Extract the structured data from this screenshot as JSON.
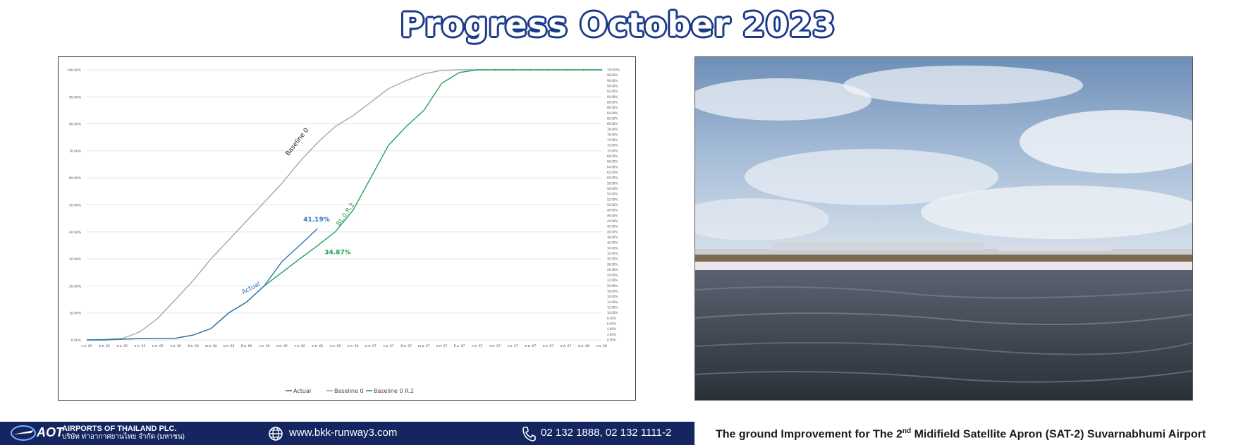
{
  "page": {
    "title": "Progress October 2023"
  },
  "chart_data": {
    "type": "line",
    "categories": [
      "ก.ย. 65",
      "ต.ค. 65",
      "พ.ย. 65",
      "ธ.ค. 65",
      "ม.ค. 66",
      "ก.พ. 66",
      "มี.ค. 66",
      "เม.ย. 66",
      "พ.ค. 66",
      "มิ.ย. 66",
      "ก.ค. 66",
      "ส.ค. 66",
      "ก.ย. 66",
      "ต.ค. 66",
      "พ.ย. 66",
      "ธ.ค. 66",
      "ม.ค. 67",
      "ก.พ. 67",
      "มี.ค. 67",
      "เม.ย. 67",
      "พ.ค. 67",
      "มิ.ย. 67",
      "ก.ค. 67",
      "ส.ค. 67",
      "ก.ย. 67",
      "ต.ค. 67",
      "พ.ย. 67",
      "ธ.ค. 67",
      "ม.ค. 68",
      "ก.พ. 68"
    ],
    "series": [
      {
        "name": "Actual",
        "color": "#2e75b6",
        "values": [
          0,
          0,
          0.3,
          0.5,
          0.6,
          0.6,
          1.8,
          4.2,
          10,
          14,
          20,
          29,
          35,
          41.19,
          null,
          null,
          null,
          null,
          null,
          null,
          null,
          null,
          null,
          null,
          null,
          null,
          null,
          null,
          null,
          null
        ]
      },
      {
        "name": "Baseline 0",
        "color": "#a6a6a6",
        "values": [
          0,
          0.2,
          0.5,
          3,
          8,
          15,
          22,
          30,
          37,
          44,
          51,
          58,
          66,
          73,
          79,
          83,
          88,
          93,
          96,
          98.5,
          99.8,
          100,
          100,
          100,
          100,
          100,
          100,
          100,
          100,
          100
        ]
      },
      {
        "name": "Baseline 0 R.2",
        "color": "#21a35a",
        "values": [
          0,
          0,
          0.3,
          0.5,
          0.6,
          0.6,
          1.8,
          4.2,
          10,
          14,
          20,
          25,
          30,
          34.87,
          40,
          48,
          60,
          72,
          79,
          85,
          95,
          99,
          100,
          100,
          100,
          100,
          100,
          100,
          100,
          100
        ]
      }
    ],
    "ylim": [
      0,
      100
    ],
    "y_ticks_left": [
      "0.00%",
      "10.00%",
      "20.00%",
      "30.00%",
      "40.00%",
      "50.00%",
      "60.00%",
      "70.00%",
      "80.00%",
      "90.00%",
      "100.00%"
    ],
    "y_ticks_right": [
      "0.00%",
      "2.00%",
      "4.00%",
      "6.00%",
      "8.00%",
      "10.00%",
      "12.00%",
      "14.00%",
      "16.00%",
      "18.00%",
      "20.00%",
      "22.00%",
      "24.00%",
      "26.00%",
      "28.00%",
      "30.00%",
      "32.00%",
      "34.00%",
      "36.00%",
      "38.00%",
      "40.00%",
      "42.00%",
      "44.00%",
      "46.00%",
      "48.00%",
      "50.00%",
      "52.00%",
      "54.00%",
      "56.00%",
      "58.00%",
      "60.00%",
      "62.00%",
      "64.00%",
      "66.00%",
      "68.00%",
      "70.00%",
      "72.00%",
      "74.00%",
      "76.00%",
      "78.00%",
      "80.00%",
      "82.00%",
      "84.00%",
      "86.00%",
      "88.00%",
      "90.00%",
      "92.00%",
      "94.00%",
      "96.00%",
      "98.00%",
      "100.00%"
    ],
    "annotations": {
      "baseline_label": "Baseline 0",
      "r2_label": "BL.0 R.2",
      "actual_label": "Actual",
      "actual_value": "41.19%",
      "r2_value": "34.87%"
    },
    "legend": [
      "Actual",
      "Baseline 0",
      "Baseline 0 R.2"
    ],
    "legend_position": "bottom",
    "grid": true
  },
  "footer": {
    "logo_text": "AOT",
    "company_name": "AIRPORTS OF THAILAND PLC.",
    "company_name_th": "บริษัท ท่าอากาศยานไทย จำกัด (มหาชน)",
    "website": "www.bkk-runway3.com",
    "phone": "02 132 1888, 02 132 1111-2",
    "brand_color": "#14255f"
  },
  "caption": {
    "before": "The ground Improvement for The 2",
    "sup": "nd",
    "after": " Midifield Satellite Apron (SAT-2) Suvarnabhumi Airport"
  },
  "photo": {
    "subject": "construction-site-photo"
  }
}
